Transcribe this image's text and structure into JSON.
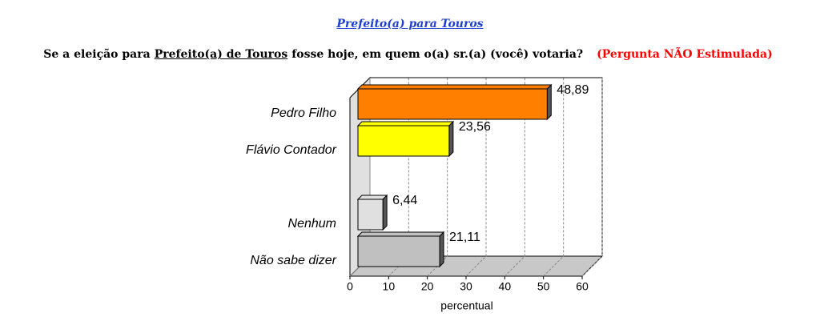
{
  "chart_data": {
    "type": "bar3d",
    "title": "Prefeito(a) para Touros",
    "subtitle_parts": [
      "Se a eleição para",
      "Prefeito(a) de Touros",
      "fosse hoje, em quem o(a) sr.(a) (você) votaria?"
    ],
    "note": "(Pergunta NÃO Estimulada)",
    "categories": [
      "Pedro Filho",
      "Flávio Contador",
      null,
      "Nenhum",
      "Não sabe dizer"
    ],
    "values": [
      48.89,
      23.56,
      null,
      6.44,
      21.11
    ],
    "value_labels": [
      "48,89",
      "23,56",
      null,
      "6,44",
      "21,11"
    ],
    "colors": [
      "#ff8000",
      "#ffff00",
      null,
      "#e0e0e0",
      "#c0c0c0"
    ],
    "xlabel": "percentual",
    "xlim": [
      0,
      60
    ],
    "xticks": [
      0,
      10,
      20,
      30,
      40,
      50,
      60
    ],
    "grid": true
  }
}
